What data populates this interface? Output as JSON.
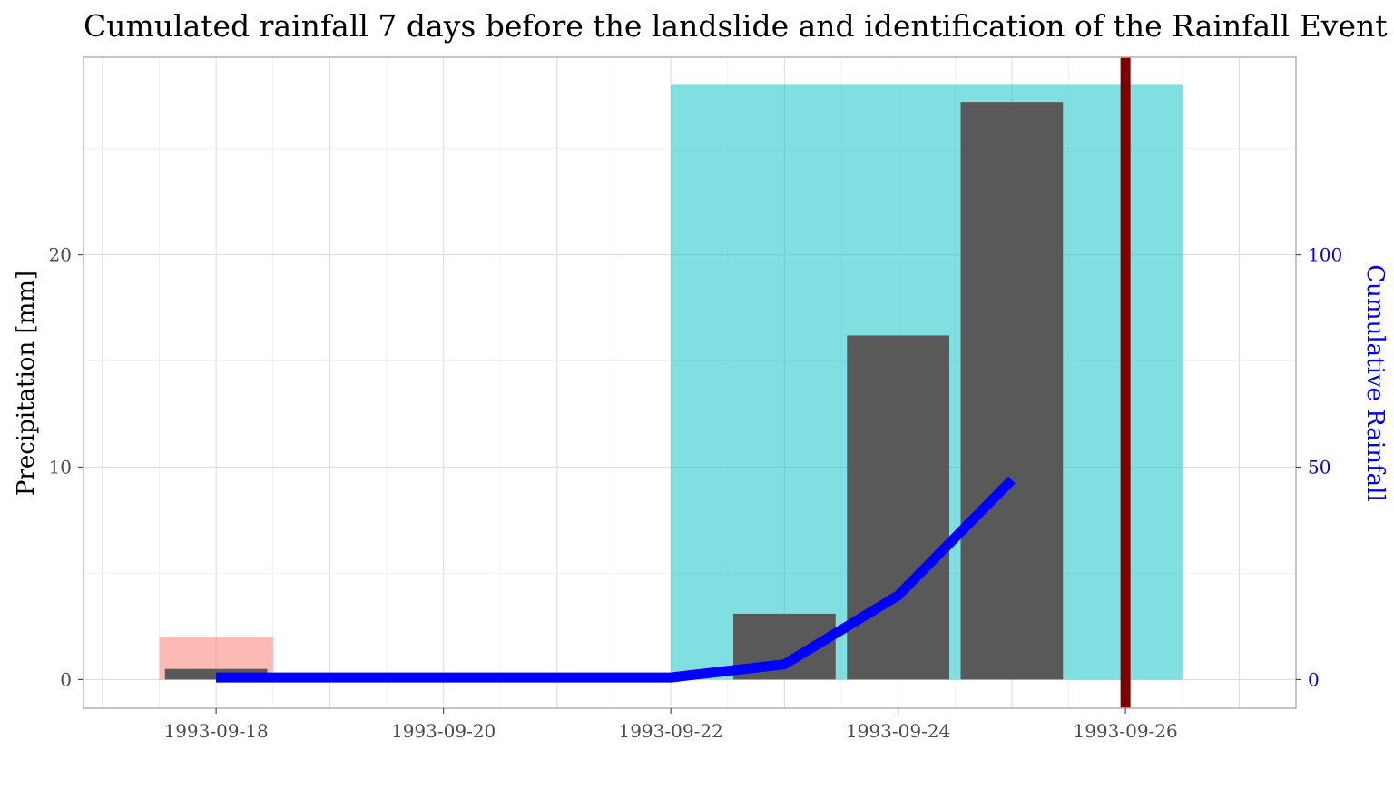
{
  "chart_data": {
    "type": "bar",
    "title": "Cumulated rainfall 7 days before the landslide and identification of the Rainfall Event",
    "xlabel": "",
    "ylabel": "Precipitation [mm]",
    "y2label": "Cumulative Rainfall",
    "x_ticks": [
      "1993-09-18",
      "1993-09-20",
      "1993-09-22",
      "1993-09-24",
      "1993-09-26"
    ],
    "x_range": [
      "1993-09-16T20:00",
      "1993-09-27T12:00"
    ],
    "ylim": [
      -1.35,
      29.3
    ],
    "y_ticks": [
      0,
      10,
      20
    ],
    "y2_ticks": [
      0,
      50,
      100
    ],
    "y2_scale": 5,
    "grid": true,
    "bars": {
      "dates": [
        "1993-09-18",
        "1993-09-23",
        "1993-09-24",
        "1993-09-25"
      ],
      "values": [
        0.5,
        3.1,
        16.2,
        27.2
      ],
      "color": "#595959"
    },
    "cumulative_line": {
      "dates": [
        "1993-09-18",
        "1993-09-19",
        "1993-09-20",
        "1993-09-21",
        "1993-09-22",
        "1993-09-23",
        "1993-09-24",
        "1993-09-25"
      ],
      "values": [
        0.5,
        0.5,
        0.5,
        0.5,
        0.5,
        3.6,
        19.8,
        47.0
      ],
      "color": "#0000ff"
    },
    "events": [
      {
        "start": "1993-09-17T12:00",
        "end": "1993-09-18T12:00",
        "height": 2.0,
        "color": "#f8766d"
      },
      {
        "start": "1993-09-22",
        "end": "1993-09-26T12:00",
        "height": 28.0,
        "color": "#00bfc4"
      }
    ],
    "landslide_date": "1993-09-26",
    "landslide_color": "#800000"
  }
}
